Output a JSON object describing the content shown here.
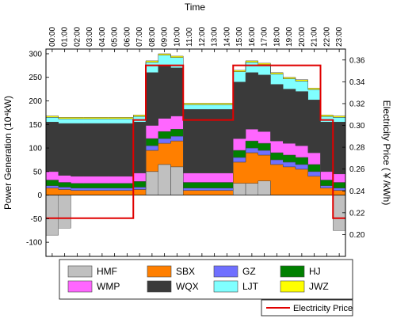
{
  "chart_data": {
    "type": "area",
    "title": "Time",
    "xlabel": "Time",
    "ylabel": "Power Generation (10⁴kW)",
    "y2label": "Electricity Price (￥/kWh)",
    "ylim": [
      -130,
      310
    ],
    "y2lim": [
      0.18,
      0.37
    ],
    "yticks": [
      -100,
      -50,
      0,
      50,
      100,
      150,
      200,
      250,
      300
    ],
    "y2ticks": [
      0.2,
      0.22,
      0.24,
      0.26,
      0.28,
      0.3,
      0.32,
      0.34,
      0.36
    ],
    "xticks": [
      "00:00",
      "01:00",
      "02:00",
      "03:00",
      "04:00",
      "05:00",
      "06:00",
      "07:00",
      "08:00",
      "09:00",
      "10:00",
      "11:00",
      "12:00",
      "13:00",
      "14:00",
      "15:00",
      "16:00",
      "17:00",
      "18:00",
      "19:00",
      "20:00",
      "21:00",
      "22:00",
      "23:00"
    ],
    "x": [
      0,
      1,
      2,
      3,
      4,
      5,
      6,
      7,
      8,
      9,
      10,
      11,
      12,
      13,
      14,
      15,
      16,
      17,
      18,
      19,
      20,
      21,
      22,
      23,
      24
    ],
    "series": [
      {
        "name": "HMF",
        "color": "#c0c0c0",
        "values": [
          -85,
          -70,
          0,
          0,
          0,
          0,
          0,
          0,
          50,
          65,
          60,
          0,
          0,
          0,
          0,
          25,
          25,
          30,
          0,
          0,
          0,
          0,
          0,
          -75,
          -90
        ]
      },
      {
        "name": "SBX",
        "color": "#ff7f00",
        "values": [
          15,
          12,
          10,
          10,
          10,
          10,
          10,
          12,
          45,
          45,
          55,
          10,
          10,
          10,
          10,
          45,
          65,
          55,
          65,
          60,
          55,
          40,
          15,
          10,
          12
        ]
      },
      {
        "name": "GZ",
        "color": "#7070ff",
        "values": [
          5,
          5,
          5,
          5,
          5,
          5,
          5,
          5,
          10,
          10,
          10,
          5,
          5,
          5,
          5,
          10,
          10,
          10,
          10,
          10,
          10,
          10,
          5,
          5,
          5
        ]
      },
      {
        "name": "HJ",
        "color": "#008000",
        "values": [
          12,
          10,
          10,
          10,
          10,
          10,
          10,
          12,
          15,
          15,
          15,
          12,
          12,
          12,
          12,
          15,
          15,
          15,
          15,
          15,
          15,
          15,
          12,
          12,
          12
        ]
      },
      {
        "name": "WMP",
        "color": "#ff66ff",
        "values": [
          18,
          15,
          15,
          15,
          15,
          15,
          15,
          18,
          28,
          28,
          28,
          20,
          20,
          20,
          20,
          25,
          25,
          25,
          25,
          25,
          25,
          25,
          18,
          18,
          18
        ]
      },
      {
        "name": "WQX",
        "color": "#3a3a3a",
        "values": [
          105,
          110,
          112,
          112,
          112,
          112,
          112,
          108,
          112,
          112,
          102,
          135,
          135,
          135,
          135,
          120,
          120,
          120,
          120,
          115,
          115,
          112,
          105,
          110,
          108
        ]
      },
      {
        "name": "LJT",
        "color": "#80ffff",
        "values": [
          10,
          10,
          10,
          10,
          10,
          10,
          10,
          12,
          22,
          22,
          22,
          10,
          10,
          10,
          10,
          22,
          22,
          22,
          22,
          22,
          22,
          22,
          12,
          10,
          10
        ]
      },
      {
        "name": "JWZ",
        "color": "#ffff00",
        "values": [
          3,
          3,
          3,
          3,
          3,
          3,
          3,
          3,
          3,
          3,
          3,
          3,
          3,
          3,
          3,
          3,
          3,
          3,
          3,
          3,
          3,
          3,
          3,
          3,
          3
        ]
      }
    ],
    "price": {
      "name": "Electricity Price",
      "color": "#e00000",
      "steps": [
        {
          "from": 0,
          "to": 7,
          "value": 0.215
        },
        {
          "from": 7,
          "to": 8,
          "value": 0.305
        },
        {
          "from": 8,
          "to": 11,
          "value": 0.355
        },
        {
          "from": 11,
          "to": 15,
          "value": 0.305
        },
        {
          "from": 15,
          "to": 22,
          "value": 0.355
        },
        {
          "from": 22,
          "to": 23,
          "value": 0.305
        },
        {
          "from": 23,
          "to": 24,
          "value": 0.215
        }
      ]
    },
    "legend": {
      "position": "bottom",
      "entries": [
        "HMF",
        "SBX",
        "GZ",
        "HJ",
        "WMP",
        "WQX",
        "LJT",
        "JWZ"
      ],
      "line_entry": "Electricity Price"
    },
    "grid": false
  }
}
